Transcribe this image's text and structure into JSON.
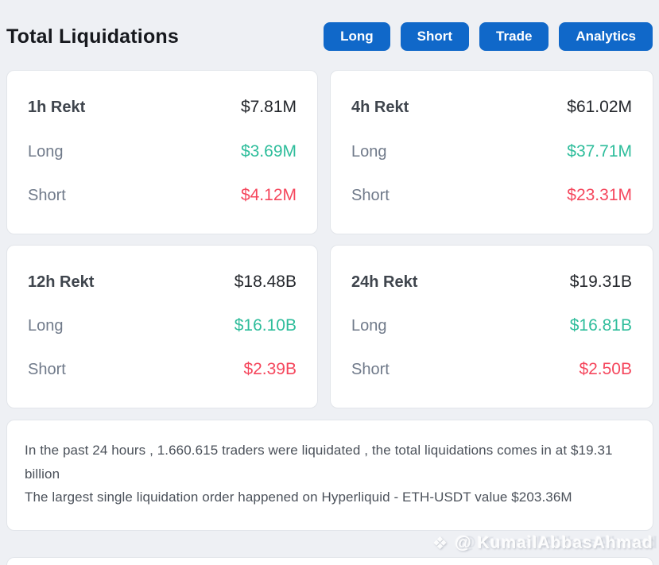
{
  "header": {
    "title": "Total Liquidations",
    "buttons": [
      {
        "label": "Long"
      },
      {
        "label": "Short"
      },
      {
        "label": "Trade"
      },
      {
        "label": "Analytics"
      }
    ]
  },
  "cards": [
    {
      "period": "1h Rekt",
      "total": "$7.81M",
      "long_label": "Long",
      "long_value": "$3.69M",
      "short_label": "Short",
      "short_value": "$4.12M"
    },
    {
      "period": "4h Rekt",
      "total": "$61.02M",
      "long_label": "Long",
      "long_value": "$37.71M",
      "short_label": "Short",
      "short_value": "$23.31M"
    },
    {
      "period": "12h Rekt",
      "total": "$18.48B",
      "long_label": "Long",
      "long_value": "$16.10B",
      "short_label": "Short",
      "short_value": "$2.39B"
    },
    {
      "period": "24h Rekt",
      "total": "$19.31B",
      "long_label": "Long",
      "long_value": "$16.81B",
      "short_label": "Short",
      "short_value": "$2.50B"
    }
  ],
  "summary": {
    "line1": "In the past 24 hours , 1.660.615 traders were liquidated , the total liquidations comes in at $19.31 billion",
    "line2": "The largest single liquidation order happened on Hyperliquid - ETH-USDT value $203.36M"
  },
  "watermark": {
    "icon_glyph": "❖",
    "text": "@ KumailAbbasAhmad"
  },
  "colors": {
    "accent_blue": "#1068c9",
    "long_green": "#2ebd9b",
    "short_red": "#f5475d",
    "page_background": "#eef0f4"
  }
}
